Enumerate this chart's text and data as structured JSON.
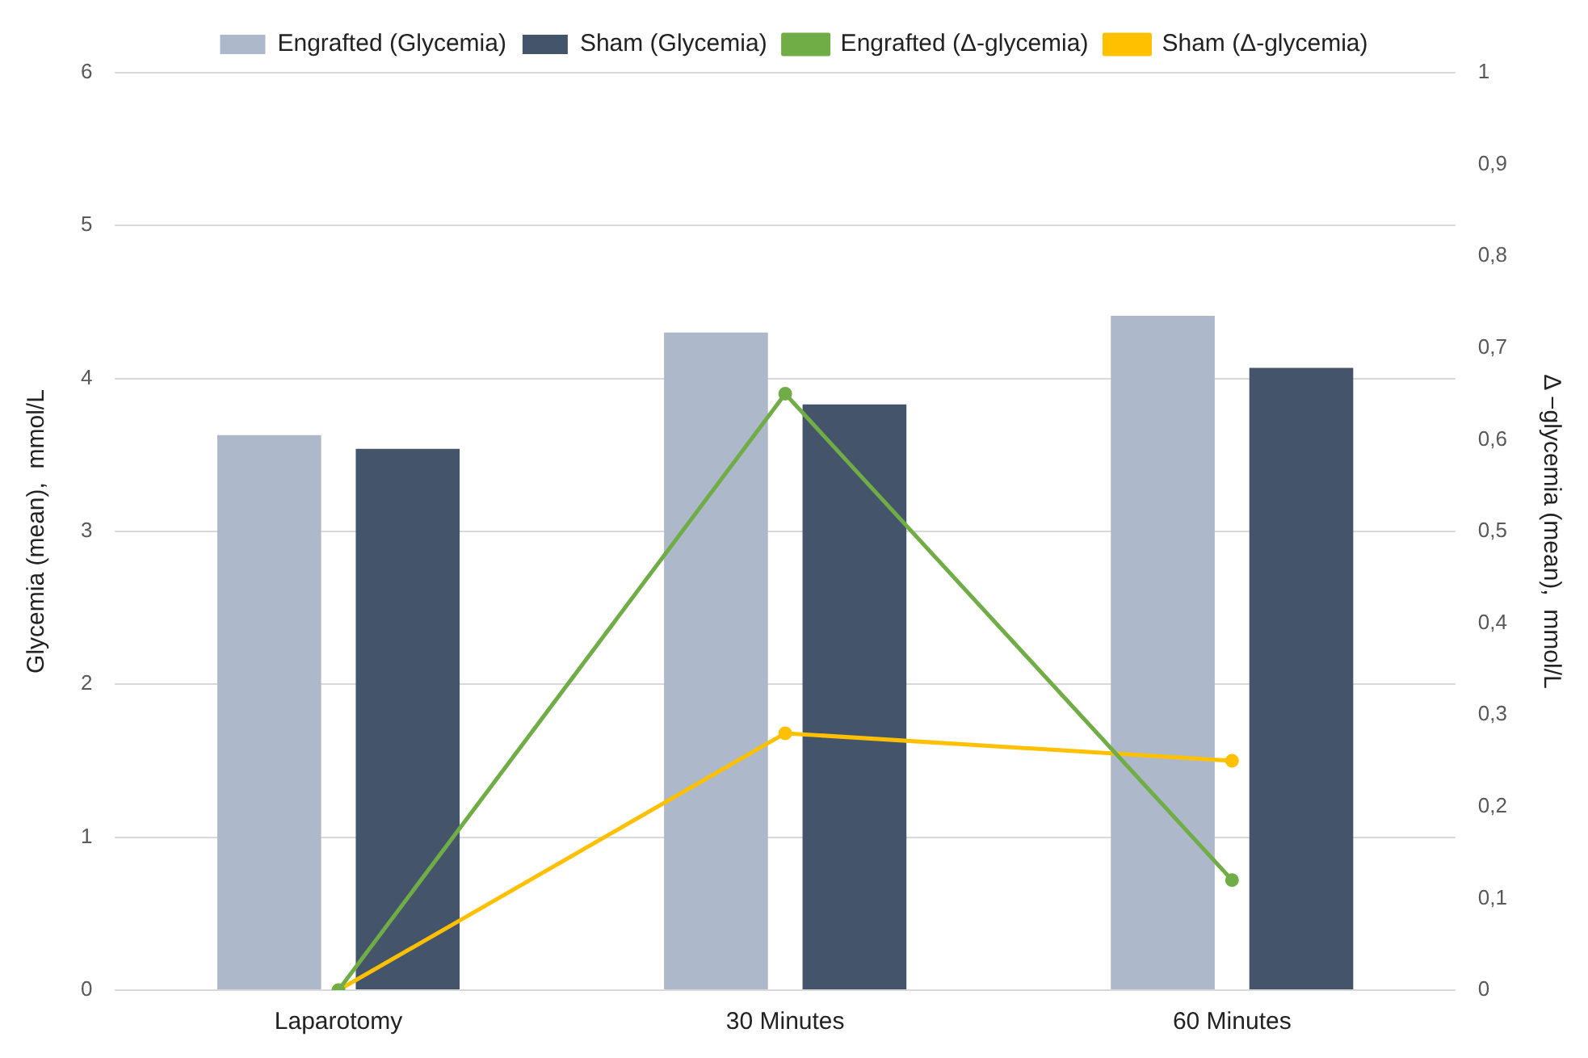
{
  "chart_data": {
    "type": "bar",
    "categories": [
      "Laparotomy",
      "30 Minutes",
      "60 Minutes"
    ],
    "ylabel": "Glycemia (mean),  mmol/L",
    "y2label": "Δ −glycemia (mean),  mmol/L",
    "ylim": [
      0,
      6
    ],
    "yticks": [
      0,
      1,
      2,
      3,
      4,
      5,
      6
    ],
    "y2lim": [
      0,
      1
    ],
    "y2ticks": [
      {
        "value": 0,
        "label": "0"
      },
      {
        "value": 0.1,
        "label": "0,1"
      },
      {
        "value": 0.2,
        "label": "0,2"
      },
      {
        "value": 0.3,
        "label": "0,3"
      },
      {
        "value": 0.4,
        "label": "0,4"
      },
      {
        "value": 0.5,
        "label": "0,5"
      },
      {
        "value": 0.6,
        "label": "0,6"
      },
      {
        "value": 0.7,
        "label": "0,7"
      },
      {
        "value": 0.8,
        "label": "0,8"
      },
      {
        "value": 0.9,
        "label": "0,9"
      },
      {
        "value": 1,
        "label": "1"
      }
    ],
    "grid": "y",
    "legend": "top",
    "marker": "circle",
    "series": [
      {
        "name": "Engrafted (Glycemia)",
        "color": "#adb9ca",
        "values": [
          3.63,
          4.3,
          4.41
        ]
      },
      {
        "name": "Sham (Glycemia)",
        "color": "#44546a",
        "values": [
          3.54,
          3.83,
          4.07
        ]
      },
      {
        "name": "Engrafted (Δ-glycemia)",
        "type": "line",
        "axis": "y2",
        "color": "#70ad47",
        "values": [
          0,
          0.65,
          0.12
        ]
      },
      {
        "name": "Sham (Δ-glycemia)",
        "type": "line",
        "axis": "y2",
        "color": "#ffc000",
        "values": [
          0,
          0.28,
          0.25
        ]
      }
    ]
  }
}
